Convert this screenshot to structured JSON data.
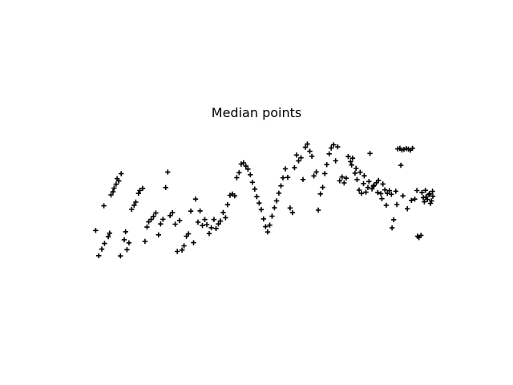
{
  "chart_data": {
    "type": "scatter",
    "title": "Median points",
    "xlabel": "",
    "ylabel": "",
    "axes_visible": false,
    "grid": false,
    "marker": "plus",
    "marker_color": "#000000",
    "xlim": [
      0,
      100
    ],
    "ylim": [
      0,
      100
    ],
    "series": [
      {
        "points": [
          [
            0.8,
            25.1
          ],
          [
            1.7,
            6.6
          ],
          [
            2.6,
            11.4
          ],
          [
            3.4,
            15.5
          ],
          [
            4.5,
            20.5
          ],
          [
            3.2,
            43.2
          ],
          [
            4.9,
            23.1
          ],
          [
            5.3,
            51.2
          ],
          [
            6.2,
            56.1
          ],
          [
            6.8,
            59.0
          ],
          [
            7.6,
            61.4
          ],
          [
            8.3,
            66.7
          ],
          [
            7.1,
            63.1
          ],
          [
            5.9,
            53.5
          ],
          [
            8.1,
            6.4
          ],
          [
            9.2,
            18.3
          ],
          [
            9.6,
            24.2
          ],
          [
            10.0,
            11.0
          ],
          [
            10.6,
            16.0
          ],
          [
            11.4,
            40.6
          ],
          [
            12.1,
            43.6
          ],
          [
            12.6,
            45.9
          ],
          [
            13.4,
            52.3
          ],
          [
            13.8,
            54.4
          ],
          [
            14.6,
            56.0
          ],
          [
            15.3,
            17.1
          ],
          [
            15.9,
            27.6
          ],
          [
            16.4,
            31.4
          ],
          [
            17.1,
            33.2
          ],
          [
            17.8,
            35.4
          ],
          [
            18.5,
            37.9
          ],
          [
            19.3,
            21.9
          ],
          [
            19.9,
            29.9
          ],
          [
            20.6,
            33.3
          ],
          [
            21.4,
            56.6
          ],
          [
            22.0,
            67.9
          ],
          [
            22.7,
            36.0
          ],
          [
            23.4,
            38.1
          ],
          [
            24.2,
            29.7
          ],
          [
            24.8,
            9.7
          ],
          [
            25.5,
            32.4
          ],
          [
            26.2,
            10.7
          ],
          [
            26.8,
            13.8
          ],
          [
            27.5,
            20.9
          ],
          [
            28.1,
            22.6
          ],
          [
            28.8,
            39.3
          ],
          [
            29.6,
            16.1
          ],
          [
            30.2,
            48.1
          ],
          [
            30.9,
            31.2
          ],
          [
            31.5,
            39.5
          ],
          [
            32.2,
            28.7
          ],
          [
            32.9,
            33.1
          ],
          [
            33.5,
            29.4
          ],
          [
            34.2,
            22.8
          ],
          [
            34.8,
            27.1
          ],
          [
            35.6,
            33.1
          ],
          [
            36.2,
            26.6
          ],
          [
            36.9,
            29.9
          ],
          [
            37.5,
            32.0
          ],
          [
            38.3,
            38.3
          ],
          [
            39.0,
            34.5
          ],
          [
            39.6,
            44.0
          ],
          [
            40.3,
            50.9
          ],
          [
            41.0,
            51.8
          ],
          [
            41.7,
            50.5
          ],
          [
            42.3,
            63.8
          ],
          [
            43.0,
            67.5
          ],
          [
            43.6,
            73.8
          ],
          [
            44.3,
            74.7
          ],
          [
            45.0,
            72.3
          ],
          [
            45.6,
            70.1
          ],
          [
            46.3,
            66.0
          ],
          [
            46.9,
            60.4
          ],
          [
            47.6,
            55.4
          ],
          [
            48.2,
            49.9
          ],
          [
            48.9,
            45.2
          ],
          [
            49.5,
            40.4
          ],
          [
            50.2,
            33.6
          ],
          [
            50.8,
            27.9
          ],
          [
            51.4,
            24.0
          ],
          [
            52.0,
            29.0
          ],
          [
            52.7,
            35.6
          ],
          [
            53.4,
            41.7
          ],
          [
            54.0,
            46.8
          ],
          [
            54.7,
            52.5
          ],
          [
            55.3,
            57.8
          ],
          [
            55.9,
            63.7
          ],
          [
            56.6,
            70.3
          ],
          [
            57.3,
            64.0
          ],
          [
            58.0,
            41.6
          ],
          [
            58.7,
            38.2
          ],
          [
            59.3,
            71.1
          ],
          [
            59.9,
            80.4
          ],
          [
            60.5,
            76.1
          ],
          [
            61.2,
            78.4
          ],
          [
            61.8,
            62.5
          ],
          [
            62.5,
            86.1
          ],
          [
            63.1,
            88.5
          ],
          [
            63.8,
            83.2
          ],
          [
            64.4,
            79.5
          ],
          [
            65.0,
            65.1
          ],
          [
            65.7,
            68.0
          ],
          [
            66.3,
            40.0
          ],
          [
            66.9,
            51.9
          ],
          [
            67.6,
            56.7
          ],
          [
            68.2,
            66.8
          ],
          [
            68.8,
            73.4
          ],
          [
            69.5,
            81.3
          ],
          [
            70.1,
            85.6
          ],
          [
            70.8,
            87.9
          ],
          [
            71.4,
            76.2
          ],
          [
            72.0,
            86.4
          ],
          [
            72.6,
            61.5
          ],
          [
            73.3,
            64.3
          ],
          [
            73.9,
            60.0
          ],
          [
            74.5,
            63.4
          ],
          [
            75.1,
            79.3
          ],
          [
            75.8,
            75.6
          ],
          [
            76.4,
            78.1
          ],
          [
            77.1,
            67.1
          ],
          [
            77.7,
            62.4
          ],
          [
            78.3,
            54.7
          ],
          [
            79.0,
            52.3
          ],
          [
            79.6,
            59.5
          ],
          [
            80.3,
            53.2
          ],
          [
            80.9,
            56.6
          ],
          [
            81.5,
            81.6
          ],
          [
            82.1,
            55.6
          ],
          [
            82.7,
            58.2
          ],
          [
            83.4,
            60.1
          ],
          [
            84.0,
            61.8
          ],
          [
            84.7,
            52.1
          ],
          [
            85.3,
            59.2
          ],
          [
            85.9,
            54.9
          ],
          [
            86.6,
            52.4
          ],
          [
            87.2,
            54.3
          ],
          [
            87.8,
            51.6
          ],
          [
            88.5,
            33.0
          ],
          [
            89.1,
            53.9
          ],
          [
            89.7,
            84.9
          ],
          [
            90.3,
            85.3
          ],
          [
            90.9,
            84.2
          ],
          [
            91.5,
            84.6
          ],
          [
            92.2,
            85.1
          ],
          [
            92.8,
            84.7
          ],
          [
            93.4,
            84.0
          ],
          [
            94.0,
            85.4
          ],
          [
            94.7,
            48.1
          ],
          [
            95.3,
            54.4
          ],
          [
            95.9,
            19.9
          ],
          [
            96.5,
            21.5
          ],
          [
            97.2,
            49.2
          ],
          [
            97.8,
            54.5
          ],
          [
            98.4,
            47.9
          ],
          [
            99.0,
            52.1
          ],
          [
            99.6,
            46.8
          ],
          [
            100.0,
            50.2
          ],
          [
            95.5,
            20.9
          ],
          [
            96.8,
            52.9
          ],
          [
            97.5,
            46.1
          ],
          [
            98.0,
            49.7
          ],
          [
            98.9,
            51.3
          ],
          [
            99.3,
            45.0
          ],
          [
            99.9,
            53.8
          ],
          [
            92.5,
            41.0
          ],
          [
            93.7,
            47.2
          ],
          [
            91.2,
            50.5
          ],
          [
            90.6,
            72.9
          ],
          [
            89.4,
            44.1
          ],
          [
            88.0,
            27.0
          ],
          [
            86.3,
            43.6
          ],
          [
            85.0,
            48.4
          ],
          [
            83.8,
            52.9
          ],
          [
            82.5,
            57.6
          ],
          [
            81.2,
            61.0
          ],
          [
            79.8,
            65.2
          ],
          [
            78.6,
            67.8
          ],
          [
            77.4,
            70.6
          ],
          [
            76.1,
            73.1
          ]
        ]
      }
    ]
  }
}
